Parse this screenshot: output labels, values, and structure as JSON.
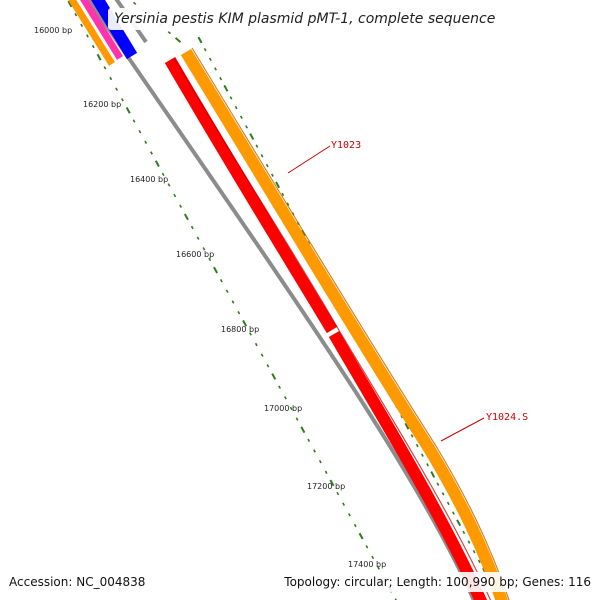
{
  "title": "Yersinia pestis KIM plasmid pMT-1, complete sequence",
  "footer": {
    "accession": "Accession: NC_004838",
    "summary": "Topology: circular; Length: 100,990 bp; Genes: 116"
  },
  "ruler_labels": [
    "16000 bp",
    "16200 bp",
    "16400 bp",
    "16600 bp",
    "16800 bp",
    "17000 bp",
    "17200 bp",
    "17400 bp"
  ],
  "genes": [
    {
      "label": "Y1023"
    },
    {
      "label": "Y1024.S"
    }
  ],
  "colors": {
    "tick": "#2e7d1c",
    "backbone": "#8c8c8c",
    "gene_red": "#ff0000",
    "gene_orange": "#ff9900",
    "gene_blue": "#0000ff",
    "gene_pink": "#ff33aa",
    "label": "#d00000"
  }
}
